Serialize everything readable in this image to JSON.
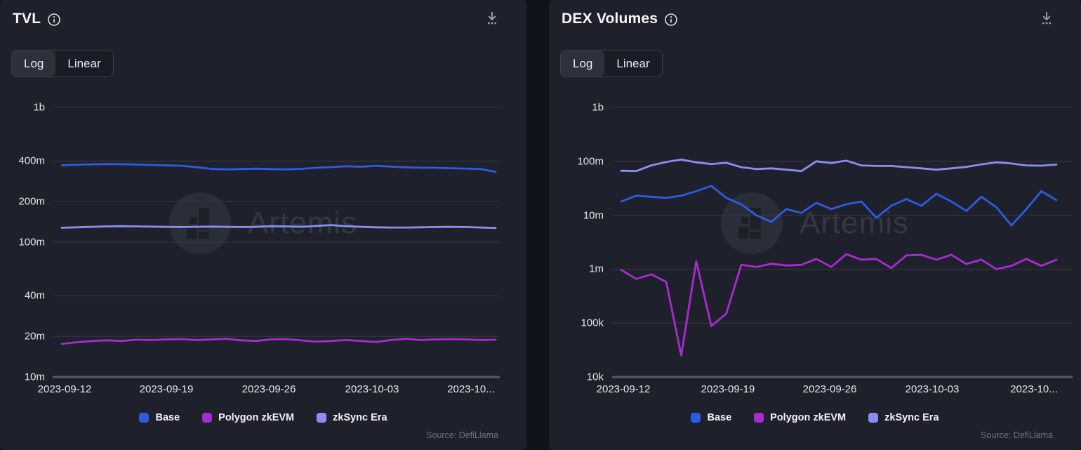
{
  "colors": {
    "background": "#11131a",
    "panel": "#1e212b",
    "base": "#2e5ae4",
    "polygon_zkevm": "#a72bd0",
    "zksync_era": "#8c8df2",
    "gridline": "#343841",
    "axis_line": "#555a67"
  },
  "panels": [
    {
      "title": "TVL",
      "icons": [
        "info-icon",
        "download-icon"
      ],
      "toggle": {
        "options": [
          "Log",
          "Linear"
        ],
        "selected": "Log"
      },
      "watermark": "Artemis",
      "source": "Source: DefiLlama"
    },
    {
      "title": "DEX Volumes",
      "icons": [
        "info-icon",
        "download-icon"
      ],
      "toggle": {
        "options": [
          "Log",
          "Linear"
        ],
        "selected": "Log"
      },
      "watermark": "Artemis",
      "source": "Source: DefiLlama"
    }
  ],
  "chart_data": [
    {
      "type": "line",
      "title": "TVL",
      "scale": "log",
      "grid": true,
      "legend_position": "bottom",
      "ylim": [
        10000000.0,
        1000000000.0
      ],
      "y_ticks": [
        {
          "label": "1b",
          "value": 1000000000.0
        },
        {
          "label": "400m",
          "value": 400000000.0
        },
        {
          "label": "200m",
          "value": 200000000.0
        },
        {
          "label": "100m",
          "value": 100000000.0
        },
        {
          "label": "40m",
          "value": 40000000.0
        },
        {
          "label": "20m",
          "value": 20000000.0
        },
        {
          "label": "10m",
          "value": 10000000.0
        }
      ],
      "x_tick_labels": [
        "2023-09-12",
        "2023-09-19",
        "2023-09-26",
        "2023-10-03",
        "2023-10..."
      ],
      "x": [
        "2023-09-12",
        "2023-09-13",
        "2023-09-14",
        "2023-09-15",
        "2023-09-16",
        "2023-09-17",
        "2023-09-18",
        "2023-09-19",
        "2023-09-20",
        "2023-09-21",
        "2023-09-22",
        "2023-09-23",
        "2023-09-24",
        "2023-09-25",
        "2023-09-26",
        "2023-09-27",
        "2023-09-28",
        "2023-09-29",
        "2023-09-30",
        "2023-10-01",
        "2023-10-02",
        "2023-10-03",
        "2023-10-04",
        "2023-10-05",
        "2023-10-06",
        "2023-10-07",
        "2023-10-08",
        "2023-10-09",
        "2023-10-10",
        "2023-10-11"
      ],
      "series": [
        {
          "name": "Base",
          "color": "#2e5ae4",
          "values": [
            372000000.0,
            376000000.0,
            378000000.0,
            380000000.0,
            379000000.0,
            377000000.0,
            374000000.0,
            372000000.0,
            369000000.0,
            360000000.0,
            350000000.0,
            347000000.0,
            349000000.0,
            351000000.0,
            349000000.0,
            347000000.0,
            350000000.0,
            356000000.0,
            361000000.0,
            366000000.0,
            363000000.0,
            369000000.0,
            364000000.0,
            359000000.0,
            357000000.0,
            356000000.0,
            354000000.0,
            352000000.0,
            349000000.0,
            333000000.0
          ]
        },
        {
          "name": "Polygon zkEVM",
          "color": "#a72bd0",
          "values": [
            17600000.0,
            18100000.0,
            18500000.0,
            18700000.0,
            18500000.0,
            18900000.0,
            18800000.0,
            19000000.0,
            19100000.0,
            18800000.0,
            19000000.0,
            19200000.0,
            18700000.0,
            18500000.0,
            19000000.0,
            19100000.0,
            18700000.0,
            18300000.0,
            18500000.0,
            18800000.0,
            18500000.0,
            18200000.0,
            18800000.0,
            19200000.0,
            18800000.0,
            19000000.0,
            19100000.0,
            19000000.0,
            18800000.0,
            18900000.0
          ]
        },
        {
          "name": "zkSync Era",
          "color": "#8c8df2",
          "values": [
            128000000.0,
            129000000.0,
            130000000.0,
            131000000.0,
            131500000.0,
            131000000.0,
            130500000.0,
            130000000.0,
            129500000.0,
            130000000.0,
            130500000.0,
            130000000.0,
            129500000.0,
            130000000.0,
            131500000.0,
            131000000.0,
            130000000.0,
            132000000.0,
            134000000.0,
            131500000.0,
            130000000.0,
            129000000.0,
            128500000.0,
            128500000.0,
            129000000.0,
            129500000.0,
            130000000.0,
            129500000.0,
            128500000.0,
            127500000.0
          ]
        }
      ]
    },
    {
      "type": "line",
      "title": "DEX Volumes",
      "scale": "log",
      "grid": true,
      "legend_position": "bottom",
      "ylim": [
        10000.0,
        1000000000.0
      ],
      "y_ticks": [
        {
          "label": "1b",
          "value": 1000000000.0
        },
        {
          "label": "100m",
          "value": 100000000.0
        },
        {
          "label": "10m",
          "value": 10000000.0
        },
        {
          "label": "1m",
          "value": 1000000.0
        },
        {
          "label": "100k",
          "value": 100000.0
        },
        {
          "label": "10k",
          "value": 10000.0
        }
      ],
      "x_tick_labels": [
        "2023-09-12",
        "2023-09-19",
        "2023-09-26",
        "2023-10-03",
        "2023-10..."
      ],
      "x": [
        "2023-09-12",
        "2023-09-13",
        "2023-09-14",
        "2023-09-15",
        "2023-09-16",
        "2023-09-17",
        "2023-09-18",
        "2023-09-19",
        "2023-09-20",
        "2023-09-21",
        "2023-09-22",
        "2023-09-23",
        "2023-09-24",
        "2023-09-25",
        "2023-09-26",
        "2023-09-27",
        "2023-09-28",
        "2023-09-29",
        "2023-09-30",
        "2023-10-01",
        "2023-10-02",
        "2023-10-03",
        "2023-10-04",
        "2023-10-05",
        "2023-10-06",
        "2023-10-07",
        "2023-10-08",
        "2023-10-09",
        "2023-10-10",
        "2023-10-11"
      ],
      "series": [
        {
          "name": "Base",
          "color": "#2e5ae4",
          "values": [
            18000000.0,
            23000000.0,
            22000000.0,
            21000000.0,
            23000000.0,
            28000000.0,
            35000000.0,
            21000000.0,
            16000000.0,
            10000000.0,
            7500000.0,
            13000000.0,
            11000000.0,
            17000000.0,
            13000000.0,
            16000000.0,
            18000000.0,
            9000000.0,
            15000000.0,
            20000000.0,
            15000000.0,
            25000000.0,
            18000000.0,
            12000000.0,
            22000000.0,
            14000000.0,
            6500000.0,
            13000000.0,
            28000000.0,
            19000000.0
          ]
        },
        {
          "name": "Polygon zkEVM",
          "color": "#a72bd0",
          "values": [
            970000.0,
            660000.0,
            800000.0,
            580000.0,
            25000.0,
            1400000.0,
            88000.0,
            150000.0,
            1200000.0,
            1100000.0,
            1260000.0,
            1170000.0,
            1200000.0,
            1550000.0,
            1100000.0,
            1900000.0,
            1500000.0,
            1550000.0,
            1050000.0,
            1800000.0,
            1850000.0,
            1500000.0,
            1850000.0,
            1250000.0,
            1500000.0,
            1000000.0,
            1150000.0,
            1550000.0,
            1150000.0,
            1500000.0
          ]
        },
        {
          "name": "zkSync Era",
          "color": "#8c8df2",
          "values": [
            67000000.0,
            66000000.0,
            84000000.0,
            97000000.0,
            108000000.0,
            96000000.0,
            89000000.0,
            94000000.0,
            78000000.0,
            72000000.0,
            74000000.0,
            70000000.0,
            66000000.0,
            100000000.0,
            93000000.0,
            103000000.0,
            84000000.0,
            82000000.0,
            82000000.0,
            78000000.0,
            74000000.0,
            70000000.0,
            74000000.0,
            79000000.0,
            88000000.0,
            96000000.0,
            91000000.0,
            84000000.0,
            83000000.0,
            87000000.0
          ]
        }
      ]
    }
  ]
}
